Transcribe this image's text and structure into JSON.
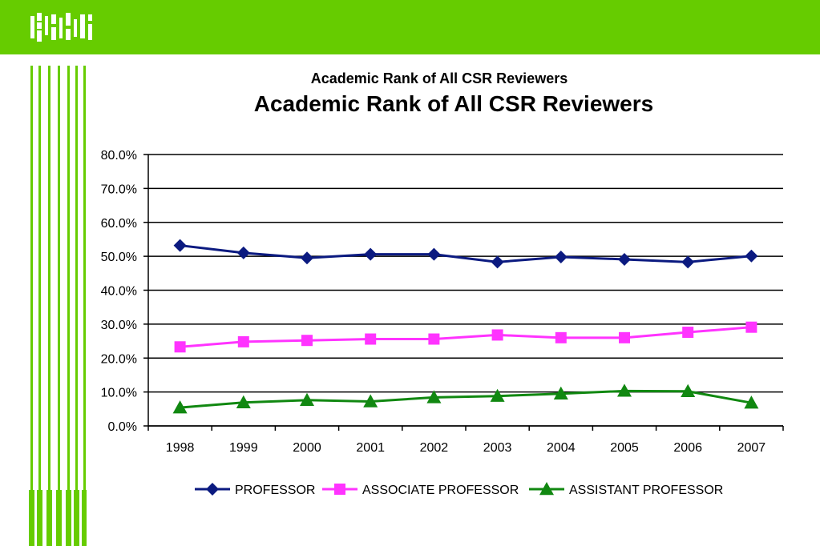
{
  "header": {
    "logo_text": "CSR",
    "bar_color": "#66cc00"
  },
  "chart_data": {
    "type": "line",
    "subtitle": "Academic Rank of All CSR Reviewers",
    "title": "Academic Rank of All CSR Reviewers",
    "categories": [
      "1998",
      "1999",
      "2000",
      "2001",
      "2002",
      "2003",
      "2004",
      "2005",
      "2006",
      "2007"
    ],
    "yticks": [
      "0.0%",
      "10.0%",
      "20.0%",
      "30.0%",
      "40.0%",
      "50.0%",
      "60.0%",
      "70.0%",
      "80.0%"
    ],
    "ylim": [
      0,
      80
    ],
    "grid": true,
    "legend_position": "bottom",
    "series": [
      {
        "name": "PROFESSOR",
        "color": "#0b1a80",
        "marker": "diamond",
        "values": [
          53.2,
          51.0,
          49.5,
          50.6,
          50.6,
          48.3,
          49.8,
          49.1,
          48.3,
          50.1
        ]
      },
      {
        "name": "ASSOCIATE PROFESSOR",
        "color": "#ff33ff",
        "marker": "square",
        "values": [
          23.3,
          24.8,
          25.2,
          25.6,
          25.6,
          26.8,
          26.0,
          26.0,
          27.6,
          29.1
        ]
      },
      {
        "name": "ASSISTANT PROFESSOR",
        "color": "#118811",
        "marker": "triangle",
        "values": [
          5.4,
          6.9,
          7.6,
          7.2,
          8.4,
          8.8,
          9.5,
          10.3,
          10.2,
          6.8
        ]
      }
    ]
  }
}
